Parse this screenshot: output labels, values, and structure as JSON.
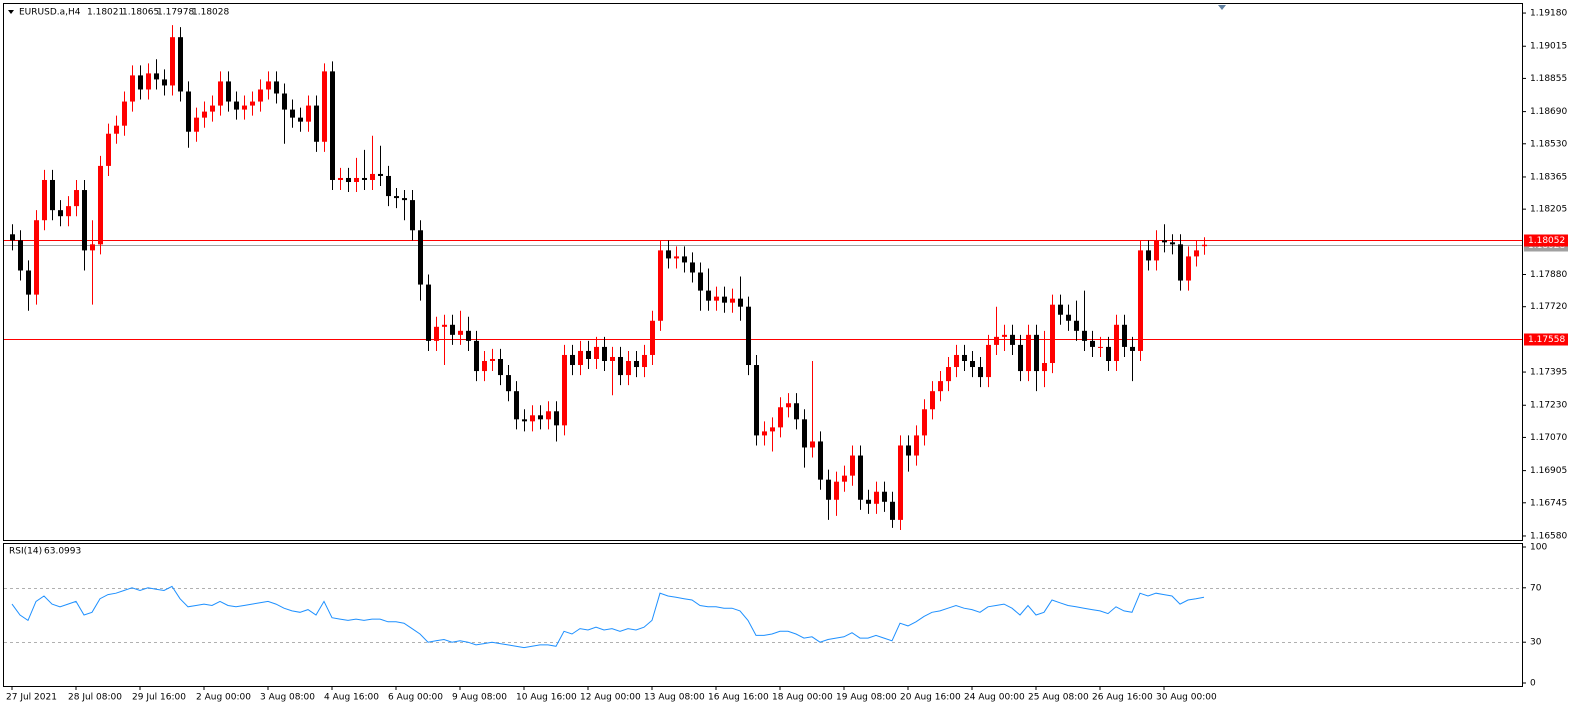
{
  "chart_data": [
    {
      "type": "candlestick",
      "symbol": "EURUSD.a,H4",
      "categories": [
        "27 Jul 2021",
        null,
        null,
        null,
        null,
        null,
        null,
        null,
        "28 Jul 08:00",
        null,
        null,
        null,
        null,
        null,
        null,
        null,
        "29 Jul 16:00",
        null,
        null,
        null,
        null,
        null,
        null,
        null,
        "2 Aug 00:00",
        null,
        null,
        null,
        null,
        null,
        null,
        null,
        "3 Aug 08:00",
        null,
        null,
        null,
        null,
        null,
        null,
        null,
        "4 Aug 16:00",
        null,
        null,
        null,
        null,
        null,
        null,
        null,
        "6 Aug 00:00",
        null,
        null,
        null,
        null,
        null,
        null,
        null,
        "9 Aug 08:00",
        null,
        null,
        null,
        null,
        null,
        null,
        null,
        "10 Aug 16:00",
        null,
        null,
        null,
        null,
        null,
        null,
        null,
        "12 Aug 00:00",
        null,
        null,
        null,
        null,
        null,
        null,
        null,
        "13 Aug 08:00",
        null,
        null,
        null,
        null,
        null,
        null,
        null,
        "16 Aug 16:00",
        null,
        null,
        null,
        null,
        null,
        null,
        null,
        "18 Aug 00:00",
        null,
        null,
        null,
        null,
        null,
        null,
        null,
        "19 Aug 08:00",
        null,
        null,
        null,
        null,
        null,
        null,
        null,
        "20 Aug 16:00",
        null,
        null,
        null,
        null,
        null,
        null,
        null,
        "24 Aug 00:00",
        null,
        null,
        null,
        null,
        null,
        null,
        null,
        "25 Aug 08:00",
        null,
        null,
        null,
        null,
        null,
        null,
        null,
        "26 Aug 16:00",
        null,
        null,
        null,
        null,
        null,
        null,
        null,
        "30 Aug 00:00",
        null,
        null,
        null,
        null,
        null
      ],
      "open": [
        1.1808,
        1.1805,
        1.179,
        1.1778,
        1.1815,
        1.1835,
        1.182,
        1.1817,
        1.1822,
        1.183,
        1.18,
        1.1803,
        1.1842,
        1.1858,
        1.1862,
        1.1874,
        1.1887,
        1.188,
        1.1888,
        1.1885,
        1.1882,
        1.1906,
        1.1879,
        1.1859,
        1.1866,
        1.1869,
        1.1872,
        1.1884,
        1.1874,
        1.187,
        1.1872,
        1.1874,
        1.188,
        1.1884,
        1.1878,
        1.187,
        1.1866,
        1.1864,
        1.1872,
        1.1854,
        1.1889,
        1.1835,
        1.1836,
        1.1834,
        1.1836,
        1.1835,
        1.1838,
        1.1837,
        1.1827,
        1.1826,
        1.1825,
        1.181,
        1.1783,
        1.1755,
        1.1762,
        1.1763,
        1.1758,
        1.176,
        1.1755,
        1.174,
        1.1745,
        1.1746,
        1.1738,
        1.173,
        1.1716,
        1.1715,
        1.1718,
        1.1716,
        1.172,
        1.1713,
        1.1748,
        1.1743,
        1.175,
        1.1746,
        1.1752,
        1.1745,
        1.1747,
        1.1738,
        1.1745,
        1.1742,
        1.1748,
        1.1765,
        1.18,
        1.1796,
        1.1797,
        1.1794,
        1.1789,
        1.178,
        1.1775,
        1.1777,
        1.1774,
        1.1776,
        1.1772,
        1.1743,
        1.1708,
        1.171,
        1.1712,
        1.1722,
        1.1724,
        1.1716,
        1.1702,
        1.1705,
        1.1686,
        1.1676,
        1.1685,
        1.1688,
        1.1698,
        1.1676,
        1.1674,
        1.168,
        1.1675,
        1.1666,
        1.1703,
        1.1698,
        1.1708,
        1.1721,
        1.173,
        1.1735,
        1.1742,
        1.1748,
        1.1745,
        1.1742,
        1.1737,
        1.1753,
        1.1757,
        1.1758,
        1.1753,
        1.174,
        1.1758,
        1.174,
        1.1744,
        1.1773,
        1.1768,
        1.1765,
        1.176,
        1.1755,
        1.1752,
        1.1752,
        1.1745,
        1.1763,
        1.1752,
        1.175,
        1.18,
        1.1795,
        1.1805,
        1.1804,
        1.1803,
        1.1785,
        1.1797,
        1.18021
      ],
      "high": [
        1.1813,
        1.181,
        1.1795,
        1.182,
        1.184,
        1.184,
        1.1825,
        1.1827,
        1.1835,
        1.1835,
        1.1815,
        1.1847,
        1.1863,
        1.1867,
        1.1879,
        1.1892,
        1.1892,
        1.1893,
        1.1895,
        1.189,
        1.1912,
        1.1911,
        1.1884,
        1.1871,
        1.1874,
        1.1877,
        1.1889,
        1.1889,
        1.1879,
        1.1877,
        1.1879,
        1.1885,
        1.1889,
        1.1889,
        1.1883,
        1.1875,
        1.1871,
        1.1877,
        1.1877,
        1.1893,
        1.1894,
        1.1841,
        1.1841,
        1.1846,
        1.185,
        1.1857,
        1.1852,
        1.1842,
        1.1831,
        1.183,
        1.183,
        1.1815,
        1.1788,
        1.1767,
        1.1768,
        1.1768,
        1.177,
        1.1767,
        1.176,
        1.175,
        1.1751,
        1.1751,
        1.1743,
        1.1735,
        1.1721,
        1.1723,
        1.1723,
        1.1725,
        1.1725,
        1.1753,
        1.1753,
        1.1755,
        1.1755,
        1.1757,
        1.1757,
        1.1752,
        1.1752,
        1.175,
        1.175,
        1.1753,
        1.177,
        1.1805,
        1.1805,
        1.1802,
        1.1802,
        1.1799,
        1.1794,
        1.1791,
        1.1782,
        1.1782,
        1.1781,
        1.1787,
        1.1777,
        1.1748,
        1.1715,
        1.1717,
        1.1727,
        1.1729,
        1.1729,
        1.1721,
        1.1745,
        1.171,
        1.1691,
        1.169,
        1.1693,
        1.1703,
        1.1703,
        1.1681,
        1.1685,
        1.1685,
        1.168,
        1.1708,
        1.1708,
        1.1713,
        1.1726,
        1.1735,
        1.174,
        1.1747,
        1.1753,
        1.1753,
        1.175,
        1.1747,
        1.1758,
        1.1772,
        1.1763,
        1.1763,
        1.1758,
        1.1763,
        1.1763,
        1.176,
        1.1778,
        1.1778,
        1.1773,
        1.1775,
        1.178,
        1.176,
        1.1757,
        1.1757,
        1.1768,
        1.1768,
        1.1757,
        1.1805,
        1.1805,
        1.181,
        1.1813,
        1.1808,
        1.1808,
        1.1802,
        1.1805,
        1.18065
      ],
      "low": [
        1.18,
        1.1785,
        1.177,
        1.1773,
        1.181,
        1.1815,
        1.1812,
        1.1812,
        1.1817,
        1.179,
        1.1773,
        1.1798,
        1.1837,
        1.1853,
        1.1857,
        1.1869,
        1.1875,
        1.1875,
        1.188,
        1.1877,
        1.1877,
        1.1874,
        1.1851,
        1.1854,
        1.1861,
        1.1864,
        1.1867,
        1.1869,
        1.1865,
        1.1865,
        1.1867,
        1.1869,
        1.1875,
        1.1873,
        1.1853,
        1.1861,
        1.1859,
        1.1859,
        1.1849,
        1.1849,
        1.183,
        1.183,
        1.1829,
        1.1829,
        1.183,
        1.183,
        1.1832,
        1.1822,
        1.1821,
        1.1815,
        1.1805,
        1.1775,
        1.175,
        1.175,
        1.1743,
        1.1753,
        1.1753,
        1.175,
        1.1735,
        1.1735,
        1.174,
        1.1733,
        1.1725,
        1.1711,
        1.171,
        1.171,
        1.1711,
        1.1711,
        1.1705,
        1.1708,
        1.1738,
        1.1738,
        1.1741,
        1.1741,
        1.174,
        1.1728,
        1.1733,
        1.1733,
        1.1737,
        1.1737,
        1.1743,
        1.176,
        1.1791,
        1.1791,
        1.1789,
        1.1784,
        1.177,
        1.177,
        1.177,
        1.1769,
        1.1769,
        1.1765,
        1.1738,
        1.1703,
        1.1703,
        1.17,
        1.1707,
        1.1717,
        1.1711,
        1.1692,
        1.1697,
        1.1681,
        1.1666,
        1.1668,
        1.168,
        1.1683,
        1.1671,
        1.1669,
        1.1669,
        1.167,
        1.1662,
        1.1661,
        1.169,
        1.1693,
        1.1703,
        1.1716,
        1.1725,
        1.173,
        1.1737,
        1.174,
        1.1737,
        1.1732,
        1.1732,
        1.1748,
        1.175,
        1.1748,
        1.1735,
        1.1735,
        1.173,
        1.1732,
        1.1739,
        1.1763,
        1.176,
        1.1755,
        1.175,
        1.1747,
        1.1747,
        1.174,
        1.174,
        1.1747,
        1.1735,
        1.1745,
        1.179,
        1.179,
        1.1799,
        1.1798,
        1.178,
        1.178,
        1.1792,
        1.17978
      ],
      "close": [
        1.1805,
        1.179,
        1.1778,
        1.1815,
        1.1835,
        1.182,
        1.1817,
        1.1822,
        1.183,
        1.18,
        1.1803,
        1.1842,
        1.1858,
        1.1862,
        1.1874,
        1.1887,
        1.188,
        1.1888,
        1.1885,
        1.1882,
        1.1906,
        1.1879,
        1.1859,
        1.1866,
        1.1869,
        1.1872,
        1.1884,
        1.1874,
        1.187,
        1.1872,
        1.1874,
        1.188,
        1.1884,
        1.1878,
        1.187,
        1.1866,
        1.1864,
        1.1872,
        1.1854,
        1.1889,
        1.1835,
        1.1836,
        1.1834,
        1.1836,
        1.1835,
        1.1838,
        1.1837,
        1.1827,
        1.1826,
        1.1825,
        1.181,
        1.1783,
        1.1755,
        1.1762,
        1.1763,
        1.1758,
        1.176,
        1.1755,
        1.174,
        1.1745,
        1.1746,
        1.1738,
        1.173,
        1.1716,
        1.1715,
        1.1718,
        1.1716,
        1.172,
        1.1713,
        1.1748,
        1.1743,
        1.175,
        1.1746,
        1.1752,
        1.1745,
        1.1747,
        1.1738,
        1.1745,
        1.1742,
        1.1748,
        1.1765,
        1.18,
        1.1796,
        1.1797,
        1.1794,
        1.1789,
        1.178,
        1.1775,
        1.1777,
        1.1774,
        1.1776,
        1.1772,
        1.1743,
        1.1708,
        1.171,
        1.1712,
        1.1722,
        1.1724,
        1.1716,
        1.1702,
        1.1705,
        1.1686,
        1.1676,
        1.1685,
        1.1688,
        1.1698,
        1.1676,
        1.1674,
        1.168,
        1.1675,
        1.1666,
        1.1703,
        1.1698,
        1.1708,
        1.1721,
        1.173,
        1.1735,
        1.1742,
        1.1748,
        1.1745,
        1.1742,
        1.1737,
        1.1753,
        1.1757,
        1.1758,
        1.1753,
        1.174,
        1.1758,
        1.174,
        1.1744,
        1.1773,
        1.1768,
        1.1765,
        1.176,
        1.1755,
        1.1752,
        1.1752,
        1.1745,
        1.1763,
        1.1752,
        1.175,
        1.18,
        1.1795,
        1.1805,
        1.1804,
        1.1803,
        1.1785,
        1.1797,
        1.18,
        1.18028
      ],
      "up_color": "#ff0000",
      "down_color": "#000000",
      "ylim": [
        1.1656,
        1.19225
      ],
      "yticks": [
        {
          "value": 1.1918,
          "label": "1.19180"
        },
        1.19015,
        1.18855,
        {
          "value": 1.1869,
          "label": "1.18690"
        },
        {
          "value": 1.1853,
          "label": "1.18530"
        },
        1.18365,
        1.18205,
        {
          "value": 1.1788,
          "label": "1.17880"
        },
        {
          "value": 1.1772,
          "label": "1.17720"
        },
        1.17395,
        {
          "value": 1.1723,
          "label": "1.17230"
        },
        {
          "value": 1.1707,
          "label": "1.17070"
        },
        1.16905,
        1.16745,
        {
          "value": 1.1658,
          "label": "1.16580"
        }
      ],
      "price_lines": [
        {
          "value": 1.18028,
          "color": "#a0a0a0"
        },
        {
          "value": 1.18052,
          "color": "#ff0000"
        },
        {
          "value": 1.17558,
          "color": "#ff0000"
        }
      ]
    },
    {
      "type": "line",
      "name": "RSI(14)",
      "color": "#1e90ff",
      "values": [
        58,
        50,
        46,
        60,
        64,
        58,
        56,
        58,
        60,
        50,
        52,
        62,
        65,
        66,
        68,
        70,
        68,
        70,
        69,
        68,
        71,
        62,
        56,
        57,
        58,
        57,
        60,
        57,
        56,
        57,
        58,
        59,
        60,
        58,
        55,
        53,
        52,
        54,
        50,
        60,
        48,
        47,
        46,
        47,
        46,
        47,
        47,
        45,
        45,
        44,
        40,
        36,
        30,
        31,
        32,
        30,
        31,
        30,
        28,
        29,
        30,
        29,
        28,
        27,
        26,
        27,
        28,
        28,
        27,
        38,
        36,
        40,
        39,
        41,
        39,
        40,
        38,
        40,
        39,
        41,
        46,
        66,
        64,
        63,
        62,
        61,
        57,
        56,
        56,
        55,
        55,
        53,
        46,
        35,
        35,
        36,
        38,
        38,
        36,
        33,
        34,
        30,
        32,
        33,
        34,
        37,
        33,
        33,
        35,
        33,
        31,
        44,
        42,
        45,
        49,
        52,
        53,
        55,
        57,
        55,
        54,
        52,
        56,
        57,
        58,
        55,
        50,
        57,
        50,
        52,
        61,
        59,
        57,
        56,
        55,
        54,
        53,
        51,
        56,
        53,
        52,
        66,
        64,
        66,
        65,
        64,
        58,
        61,
        62,
        63.0993
      ],
      "ylim": [
        0,
        100
      ],
      "yticks": [
        0,
        30,
        70,
        100
      ],
      "levels": [
        30,
        70
      ]
    }
  ]
}
